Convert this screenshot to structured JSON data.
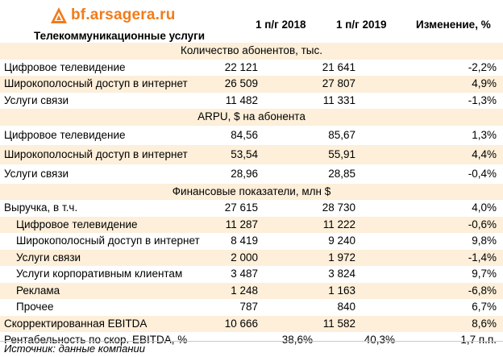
{
  "logo": {
    "text": "bf.arsagera.ru",
    "color": "#f07c1c",
    "icon": "arsagera-logo-icon"
  },
  "header": {
    "sector": "Телекоммуникационные услуги",
    "col1": "1 п/г 2018",
    "col2": "1 п/г 2019",
    "col3": "Изменение, %"
  },
  "sections": {
    "subscribers": "Количество абонентов, тыс.",
    "arpu": "ARPU, $ на абонента",
    "financial": "Финансовые показатели, млн $"
  },
  "rows": [
    {
      "label": "Цифровое телевидение",
      "v1": "22 121",
      "v2": "21 641",
      "ch": "-2,2%"
    },
    {
      "label": "Широкополосный доступ в интернет",
      "v1": "26 509",
      "v2": "27 807",
      "ch": "4,9%"
    },
    {
      "label": "Услуги связи",
      "v1": "11 482",
      "v2": "11 331",
      "ch": "-1,3%"
    },
    {
      "label": "Цифровое телевидение",
      "v1": "84,56",
      "v2": "85,67",
      "ch": "1,3%"
    },
    {
      "label": "Широкополосный доступ в интернет",
      "v1": "53,54",
      "v2": "55,91",
      "ch": "4,4%"
    },
    {
      "label": "Услуги связи",
      "v1": "28,96",
      "v2": "28,85",
      "ch": "-0,4%"
    },
    {
      "label": "Выручка, в т.ч.",
      "v1": "27 615",
      "v2": "28 730",
      "ch": "4,0%"
    },
    {
      "label": "Цифровое телевидение",
      "v1": "11 287",
      "v2": "11 222",
      "ch": "-0,6%"
    },
    {
      "label": "Широкополосный доступ в интернет",
      "v1": "8 419",
      "v2": "9 240",
      "ch": "9,8%"
    },
    {
      "label": "Услуги связи",
      "v1": "2 000",
      "v2": "1 972",
      "ch": "-1,4%"
    },
    {
      "label": "Услуги корпоративным клиентам",
      "v1": "3 487",
      "v2": "3 824",
      "ch": "9,7%"
    },
    {
      "label": "Реклама",
      "v1": "1 248",
      "v2": "1 163",
      "ch": "-6,8%"
    },
    {
      "label": "Прочее",
      "v1": "787",
      "v2": "840",
      "ch": "6,7%"
    },
    {
      "label": "Скорректированная EBITDA",
      "v1": "10 666",
      "v2": "11 582",
      "ch": "8,6%"
    },
    {
      "label": "Рентабельность по скор. EBITDA, %",
      "v1": "38,6%",
      "v2": "40,3%",
      "ch": "1,7 п.п."
    }
  ],
  "source": "Источник: данные компании",
  "colors": {
    "shade": "#fdefd9",
    "brand": "#f07c1c"
  }
}
